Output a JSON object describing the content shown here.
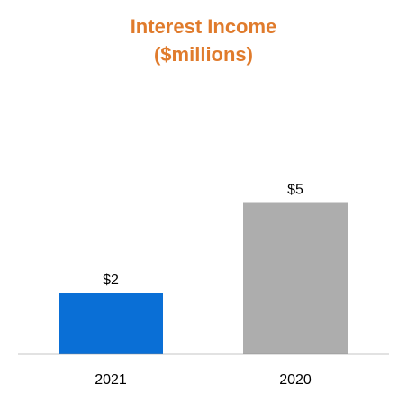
{
  "chart_data": {
    "type": "bar",
    "title": "Interest Income",
    "subtitle": "($millions)",
    "categories": [
      "2021",
      "2020"
    ],
    "values": [
      2,
      5
    ],
    "value_labels": [
      "$2",
      "$5"
    ],
    "bar_colors": [
      "#0A6FD6",
      "#ADADAD"
    ],
    "ylim": [
      0,
      6.5
    ],
    "grid": false,
    "legend": "none"
  },
  "colors": {
    "title": "#E07B2C",
    "axis": "#8C8C8C"
  }
}
